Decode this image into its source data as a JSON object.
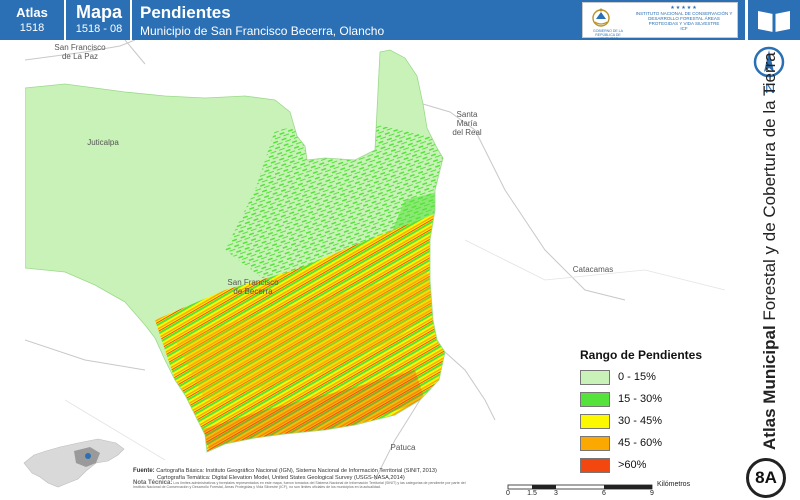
{
  "header": {
    "atlas_label": "Atlas",
    "atlas_number": "1518",
    "mapa_label": "Mapa",
    "mapa_number": "1518 - 08",
    "title": "Pendientes",
    "subtitle": "Municipio de San Francisco Becerra, Olancho",
    "logo_gov_text": "GOBIERNO DE LA REPÚBLICA DE HONDURAS",
    "logo_inst_text": "INSTITUTO NACIONAL DE CONSERVACIÓN Y DESARROLLO FORESTAL ÁREAS PROTEGIDAS Y VIDA SILVESTRE",
    "logo_inst_acronym": "ICF",
    "logo_stars": "★★★★★"
  },
  "sidebar": {
    "north_letter": "N",
    "side_title_bold": "Atlas Municipal",
    "side_title_rest": " Forestal y de Cobertura de la Tierra",
    "badge": "8A"
  },
  "places": {
    "san_francisco_la_paz": "San Francisco\nde La Paz",
    "juticalpa": "Juticalpa",
    "santa_maria": "Santa\nMaría\ndel Real",
    "catacamas": "Catacamas",
    "sf_becerra": "San Francisco\nde Becerra",
    "patuca": "Patuca"
  },
  "legend": {
    "title": "Rango de Pendientes",
    "items": [
      {
        "label": "0 - 15%",
        "color": "#c9f2b9"
      },
      {
        "label": "15 - 30%",
        "color": "#55e23a"
      },
      {
        "label": "30 - 45%",
        "color": "#fcf800"
      },
      {
        "label": "45 - 60%",
        "color": "#fba800"
      },
      {
        "label": ">60%",
        "color": "#f24810"
      }
    ]
  },
  "source": {
    "label": "Fuente:",
    "line1": "Cartografía Básica: Instituto Geográfico Nacional (IGN), Sistema Nacional de Información Territorial (SINIT, 2013)",
    "line2": "Cartografía Temática: Digital Elevation Model, United States Geological Survey (USGS-NASA,2014)",
    "note_label": "Nota Técnica:",
    "note": "Los límites administrativos y forestales representados en este mapa, fueron tomados del Sistema Nacional de Información Territorial (SINIT) y las categorías de pendiente por parte del Instituto Nacional de Conservación y Desarrollo Forestal, Áreas Protegidas y Vida Silvestre (ICF), no son limites oficiales de los municipios en la actualidad."
  },
  "scale": {
    "unit": "Kilómetros",
    "ticks": [
      "0",
      "1.5",
      "3",
      "6",
      "9"
    ]
  },
  "colors": {
    "header_blue": "#2b6fb5",
    "neighbor_fill": "#ffffff",
    "municipality_base": "#c9f2b9"
  }
}
